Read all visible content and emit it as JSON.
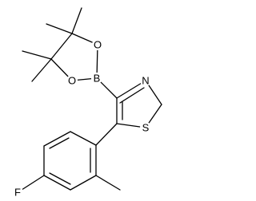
{
  "atoms": [
    "O",
    "O",
    "B",
    "N",
    "S",
    "F"
  ]
}
